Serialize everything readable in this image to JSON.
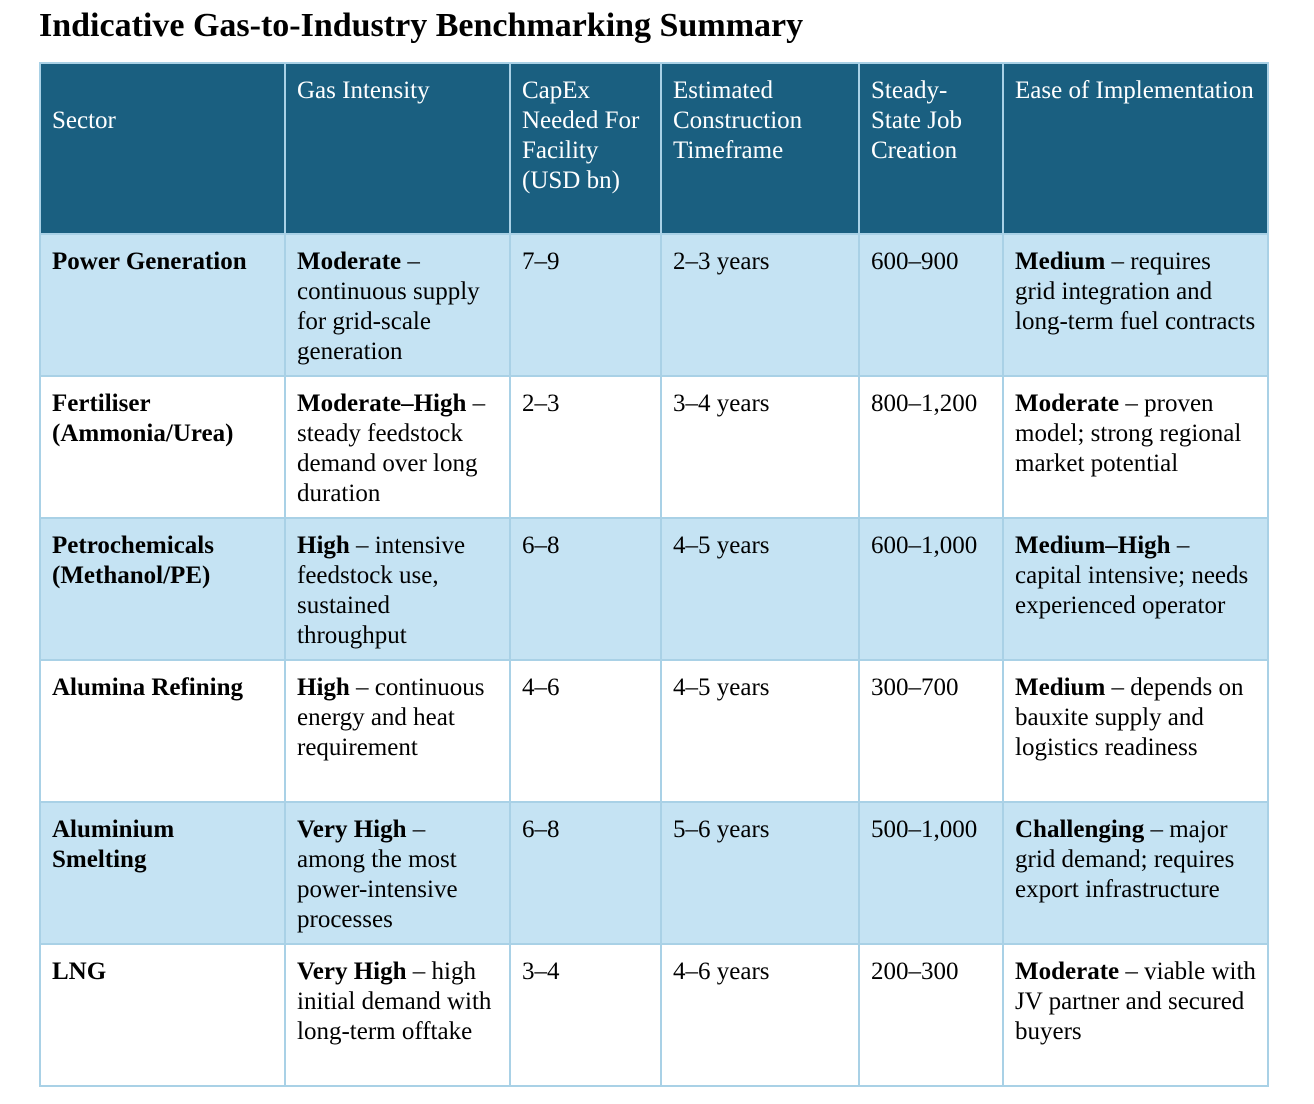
{
  "title": "Indicative Gas-to-Industry Benchmarking Summary",
  "table": {
    "headers": [
      "Sector",
      "Gas Intensity",
      "CapEx Needed For Facility (USD bn)",
      "Estimated Construction Timeframe",
      "Steady-State Job Creation",
      "Ease of Implementation"
    ],
    "rows": [
      [
        "Power Generation",
        {
          "bold": "Moderate",
          "rest": " – continuous supply for grid-scale generation"
        },
        "7–9",
        "2–3 years",
        "600–900",
        {
          "bold": "Medium",
          "rest": " – requires grid integration and long-term fuel contracts"
        }
      ],
      [
        "Fertiliser (Ammonia/Urea)",
        {
          "bold": "Moderate–High",
          "rest": " – steady feedstock demand over long duration"
        },
        "2–3",
        "3–4 years",
        "800–1,200",
        {
          "bold": "Moderate",
          "rest": " – proven model; strong regional market potential"
        }
      ],
      [
        "Petrochemicals (Methanol/PE)",
        {
          "bold": "High",
          "rest": " – intensive feedstock use, sustained throughput"
        },
        "6–8",
        "4–5 years",
        "600–1,000",
        {
          "bold": "Medium–High",
          "rest": " – capital intensive; needs experienced operator"
        }
      ],
      [
        "Alumina Refining",
        {
          "bold": "High",
          "rest": " – continuous energy and heat requirement"
        },
        "4–6",
        "4–5 years",
        "300–700",
        {
          "bold": "Medium",
          "rest": " – depends on bauxite supply and logistics readiness"
        }
      ],
      [
        "Aluminium Smelting",
        {
          "bold": "Very High",
          "rest": " – among the most power-intensive processes"
        },
        "6–8",
        "5–6 years",
        "500–1,000",
        {
          "bold": "Challenging",
          "rest": " – major grid demand; requires export infrastructure"
        }
      ],
      [
        "LNG",
        {
          "bold": "Very High",
          "rest": " – high initial demand with long-term offtake"
        },
        "3–4",
        "4–6 years",
        "200–300",
        {
          "bold": "Moderate",
          "rest": " – viable with JV partner and secured buyers"
        }
      ]
    ]
  }
}
